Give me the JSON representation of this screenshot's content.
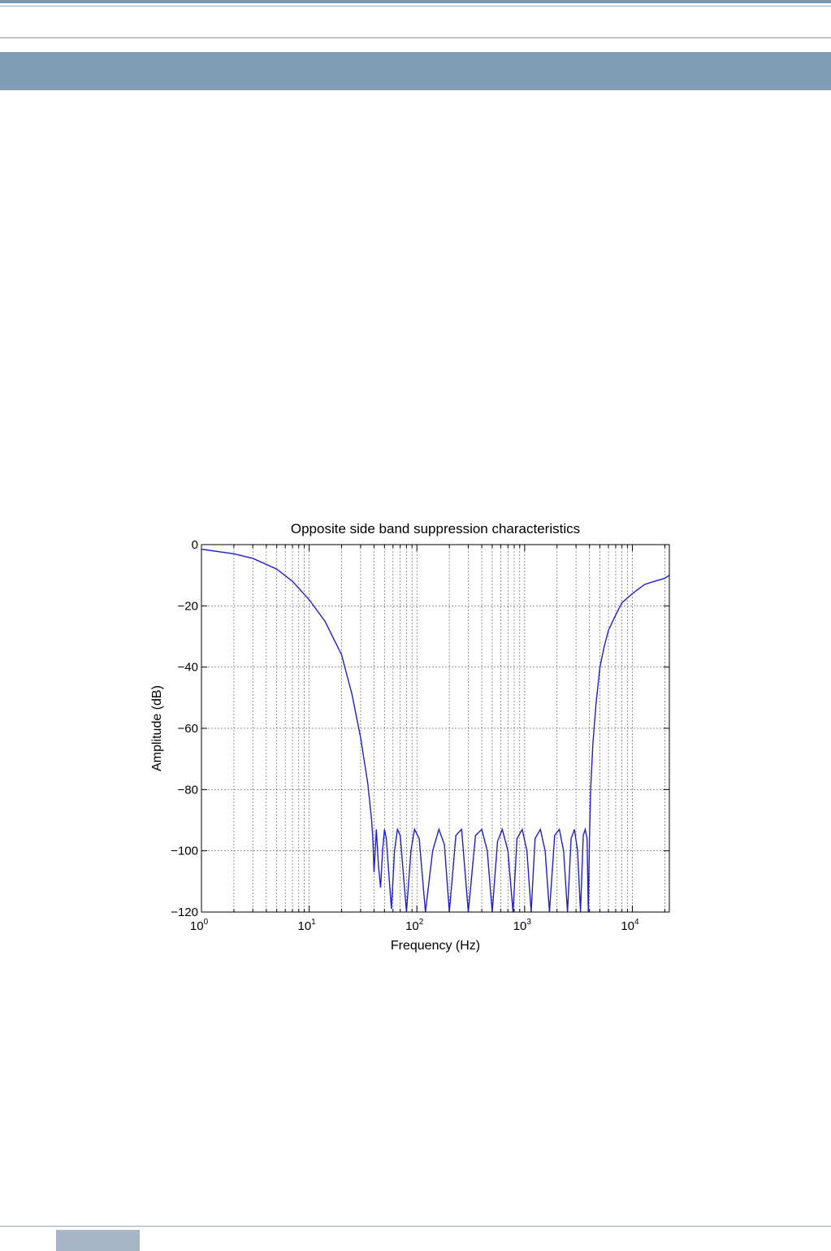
{
  "chart_data": {
    "type": "line",
    "title": "Opposite side band suppression characteristics",
    "xlabel": "Frequency (Hz)",
    "ylabel": "Amplitude (dB)",
    "xscale": "log",
    "xlim": [
      1,
      22050
    ],
    "ylim": [
      -120,
      0
    ],
    "yticks": [
      0,
      -20,
      -40,
      -60,
      -80,
      -100,
      -120
    ],
    "ytick_labels": [
      "0",
      "−20",
      "−40",
      "−60",
      "−80",
      "−100",
      "−120"
    ],
    "xticks": [
      1,
      10,
      100,
      1000,
      10000
    ],
    "xtick_labels": [
      {
        "base": "10",
        "exp": "0"
      },
      {
        "base": "10",
        "exp": "1"
      },
      {
        "base": "10",
        "exp": "2"
      },
      {
        "base": "10",
        "exp": "3"
      },
      {
        "base": "10",
        "exp": "4"
      }
    ],
    "grid": true,
    "line_color": "#1f1fcf",
    "series": [
      {
        "values_desc": "Amplitude response in dB vs frequency in Hz",
        "x": [
          1,
          2,
          3,
          5,
          7,
          10,
          14,
          20,
          25,
          30,
          35,
          38,
          39,
          40,
          41,
          42,
          44,
          46,
          48,
          50,
          52,
          55,
          58,
          62,
          66,
          70,
          80,
          88,
          95,
          105,
          120,
          140,
          160,
          180,
          200,
          230,
          260,
          300,
          350,
          400,
          450,
          500,
          560,
          620,
          700,
          780,
          850,
          950,
          1050,
          1150,
          1250,
          1400,
          1550,
          1700,
          1900,
          2100,
          2300,
          2500,
          2700,
          2900,
          3100,
          3300,
          3500,
          3650,
          3800,
          3900,
          4000,
          4100,
          4300,
          4600,
          5000,
          5500,
          6000,
          7000,
          8000,
          10000,
          13000,
          16000,
          20000,
          22050
        ],
        "y": [
          -1.5,
          -3,
          -4.5,
          -8,
          -12,
          -18,
          -25,
          -36,
          -49,
          -63,
          -78,
          -90,
          -96,
          -107,
          -100,
          -93,
          -105,
          -112,
          -100,
          -93,
          -96,
          -108,
          -119,
          -100,
          -93,
          -95,
          -120,
          -100,
          -93,
          -96,
          -120,
          -100,
          -93,
          -98,
          -120,
          -95,
          -93,
          -120,
          -95,
          -93,
          -100,
          -120,
          -97,
          -93,
          -100,
          -120,
          -96,
          -93,
          -100,
          -120,
          -96,
          -93,
          -100,
          -120,
          -95,
          -93,
          -100,
          -120,
          -96,
          -93,
          -100,
          -120,
          -95,
          -93,
          -96,
          -120,
          -96,
          -80,
          -65,
          -52,
          -40,
          -33,
          -28,
          -23,
          -19,
          -16,
          -13,
          -12,
          -11,
          -10
        ]
      }
    ]
  }
}
